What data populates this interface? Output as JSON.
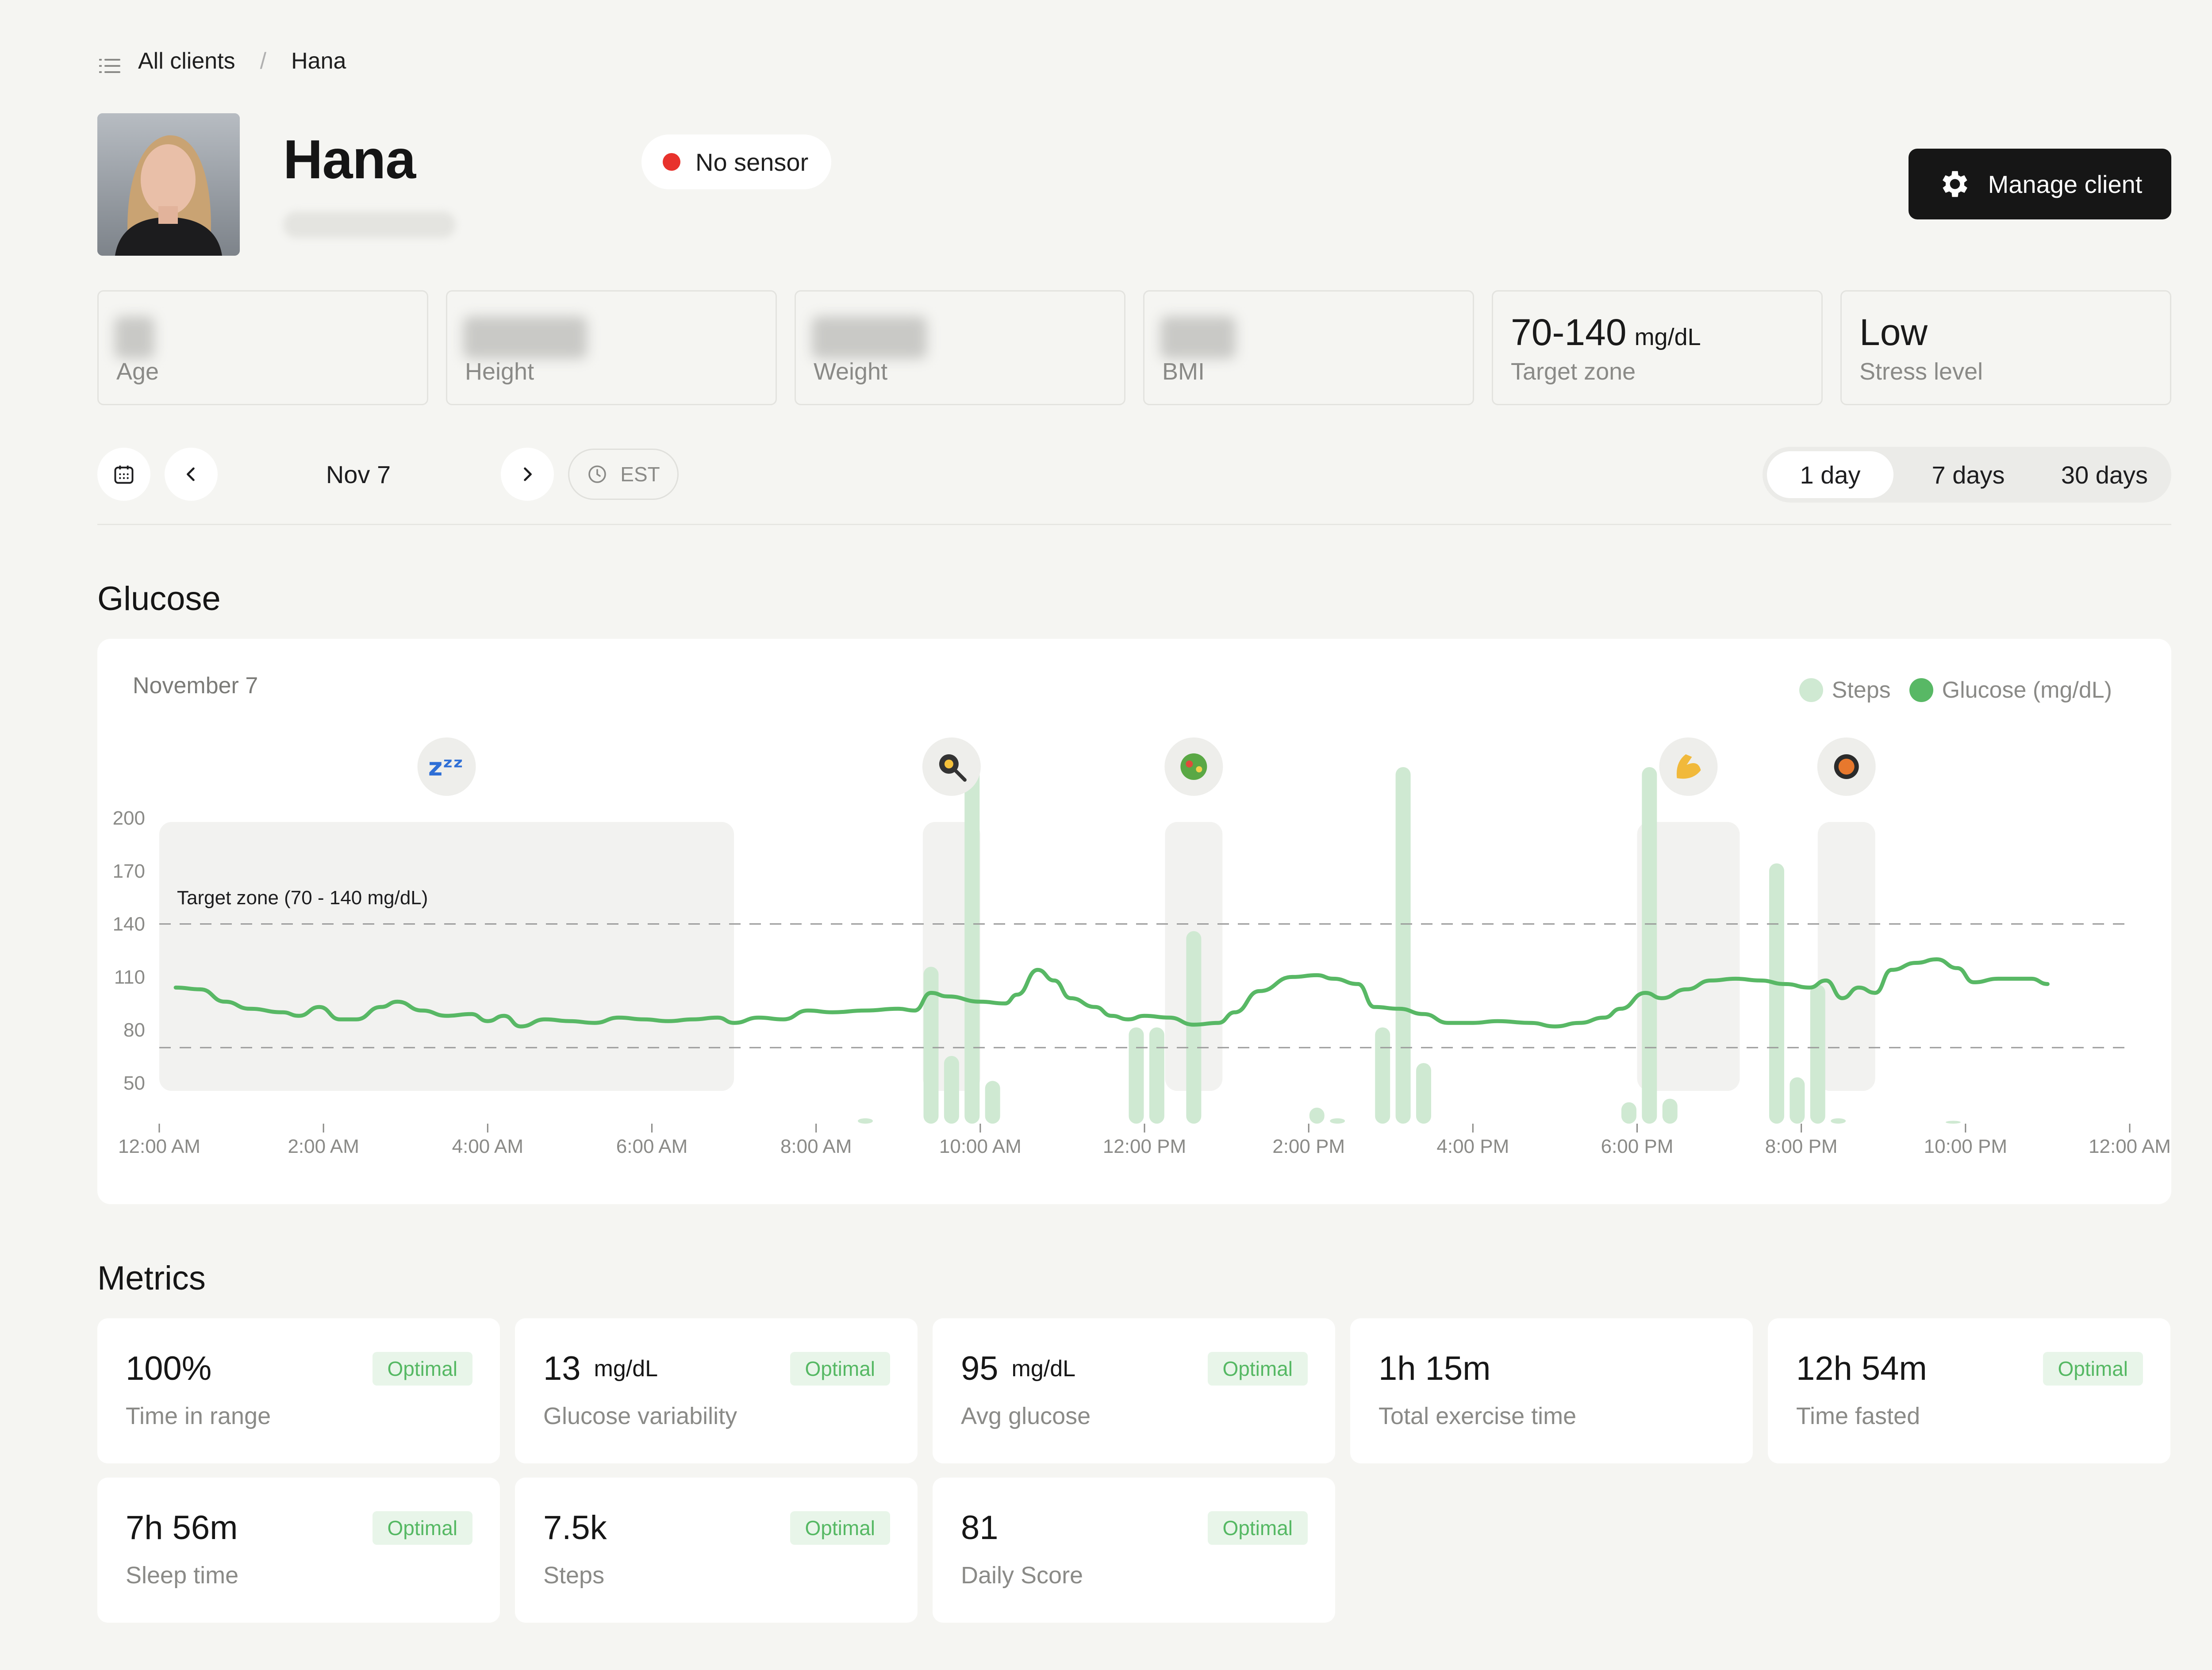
{
  "breadcrumb": {
    "root": "All clients",
    "separator": "/",
    "current": "Hana"
  },
  "client": {
    "name": "Hana"
  },
  "sensor": {
    "status": "No sensor"
  },
  "actions": {
    "manage_label": "Manage client"
  },
  "stats": [
    {
      "value": "",
      "unit": "",
      "label": "Age"
    },
    {
      "value": "",
      "unit": "",
      "label": "Height"
    },
    {
      "value": "",
      "unit": "",
      "label": "Weight"
    },
    {
      "value": "",
      "unit": "",
      "label": "BMI"
    },
    {
      "value": "70-140",
      "unit": "mg/dL",
      "label": "Target zone"
    },
    {
      "value": "Low",
      "unit": "",
      "label": "Stress level"
    }
  ],
  "date_nav": {
    "date": "Nov 7",
    "timezone": "EST"
  },
  "range": {
    "options": [
      "1 day",
      "7 days",
      "30 days"
    ],
    "selected": "1 day"
  },
  "glucose_section": {
    "title": "Glucose"
  },
  "metrics_section": {
    "title": "Metrics"
  },
  "chart_data": {
    "type": "line",
    "title": "",
    "date_label": "November 7",
    "xlabel": "",
    "ylabel": "",
    "x_ticks": [
      "12:00 AM",
      "2:00 AM",
      "4:00 AM",
      "6:00 AM",
      "8:00 AM",
      "10:00 AM",
      "12:00 PM",
      "2:00 PM",
      "4:00 PM",
      "6:00 PM",
      "8:00 PM",
      "10:00 PM",
      "12:00 AM"
    ],
    "y_ticks": [
      50,
      80,
      110,
      140,
      170,
      200
    ],
    "ylim": [
      50,
      200
    ],
    "xlim_hours": [
      0,
      24
    ],
    "target_zone": {
      "low": 70,
      "high": 140,
      "label": "Target zone (70 - 140 mg/dL)"
    },
    "legend": {
      "placement": "top-right",
      "items": [
        {
          "name": "Steps",
          "color": "#cfe9d2"
        },
        {
          "name": "Glucose (mg/dL)",
          "color": "#58b865"
        }
      ]
    },
    "colors": {
      "glucose": "#58b865",
      "steps": "#cfe9d2",
      "event_shade": "#f2f2f0",
      "zone_line": "#9a9a9a"
    },
    "series": [
      {
        "name": "Glucose (mg/dL)",
        "points": [
          [
            0.2,
            104
          ],
          [
            0.5,
            103
          ],
          [
            0.8,
            96
          ],
          [
            1.1,
            92
          ],
          [
            1.5,
            90
          ],
          [
            1.7,
            88
          ],
          [
            1.95,
            93
          ],
          [
            2.2,
            86
          ],
          [
            2.4,
            86
          ],
          [
            2.7,
            93
          ],
          [
            2.9,
            96
          ],
          [
            3.2,
            91
          ],
          [
            3.5,
            88
          ],
          [
            3.8,
            89
          ],
          [
            4.0,
            85
          ],
          [
            4.2,
            88
          ],
          [
            4.4,
            82
          ],
          [
            4.7,
            86
          ],
          [
            5.0,
            85
          ],
          [
            5.3,
            84
          ],
          [
            5.6,
            87
          ],
          [
            5.9,
            86
          ],
          [
            6.2,
            85
          ],
          [
            6.5,
            86
          ],
          [
            6.8,
            87
          ],
          [
            7.0,
            84
          ],
          [
            7.3,
            87
          ],
          [
            7.6,
            86
          ],
          [
            7.9,
            91
          ],
          [
            8.2,
            90
          ],
          [
            8.6,
            91
          ],
          [
            9.0,
            92
          ],
          [
            9.2,
            91
          ],
          [
            9.4,
            101
          ],
          [
            9.6,
            99
          ],
          [
            10.0,
            96
          ],
          [
            10.3,
            95
          ],
          [
            10.45,
            100
          ],
          [
            10.7,
            114
          ],
          [
            10.9,
            108
          ],
          [
            11.1,
            98
          ],
          [
            11.4,
            93
          ],
          [
            11.6,
            88
          ],
          [
            11.8,
            86
          ],
          [
            12.0,
            88
          ],
          [
            12.3,
            87
          ],
          [
            12.6,
            83
          ],
          [
            12.9,
            84
          ],
          [
            13.1,
            90
          ],
          [
            13.4,
            102
          ],
          [
            13.8,
            110
          ],
          [
            14.1,
            111
          ],
          [
            14.3,
            109
          ],
          [
            14.6,
            106
          ],
          [
            14.8,
            93
          ],
          [
            15.1,
            92
          ],
          [
            15.4,
            89
          ],
          [
            15.7,
            84
          ],
          [
            16.0,
            84
          ],
          [
            16.3,
            85
          ],
          [
            16.7,
            84
          ],
          [
            17.0,
            82
          ],
          [
            17.3,
            84
          ],
          [
            17.6,
            87
          ],
          [
            17.8,
            92
          ],
          [
            18.1,
            101
          ],
          [
            18.3,
            98
          ],
          [
            18.6,
            103
          ],
          [
            18.9,
            108
          ],
          [
            19.2,
            109
          ],
          [
            19.5,
            108
          ],
          [
            19.8,
            106
          ],
          [
            20.1,
            104
          ],
          [
            20.3,
            108
          ],
          [
            20.5,
            98
          ],
          [
            20.7,
            104
          ],
          [
            20.9,
            101
          ],
          [
            21.1,
            114
          ],
          [
            21.4,
            118
          ],
          [
            21.65,
            120
          ],
          [
            21.9,
            115
          ],
          [
            22.1,
            107
          ],
          [
            22.4,
            109
          ],
          [
            22.8,
            109
          ],
          [
            23.0,
            106
          ]
        ]
      },
      {
        "name": "Steps",
        "bars": [
          [
            8.6,
            0.015
          ],
          [
            9.4,
            0.44
          ],
          [
            9.65,
            0.19
          ],
          [
            9.9,
            1.0
          ],
          [
            10.15,
            0.12
          ],
          [
            11.9,
            0.27
          ],
          [
            12.15,
            0.27
          ],
          [
            12.6,
            0.54
          ],
          [
            14.1,
            0.045
          ],
          [
            14.35,
            0.015
          ],
          [
            14.9,
            0.27
          ],
          [
            15.15,
            1.0
          ],
          [
            15.4,
            0.17
          ],
          [
            17.9,
            0.06
          ],
          [
            18.15,
            1.0
          ],
          [
            18.4,
            0.07
          ],
          [
            19.7,
            0.73
          ],
          [
            19.95,
            0.13
          ],
          [
            20.2,
            0.39
          ],
          [
            20.45,
            0.015
          ],
          [
            21.85,
            0.008
          ]
        ]
      }
    ],
    "events": [
      {
        "icon": "sleep-icon",
        "start": 0.0,
        "end": 7.0
      },
      {
        "icon": "breakfast-icon",
        "start": 9.3,
        "end": 10.0
      },
      {
        "icon": "salad-icon",
        "start": 12.25,
        "end": 12.95
      },
      {
        "icon": "exercise-icon",
        "start": 18.0,
        "end": 19.25
      },
      {
        "icon": "dinner-icon",
        "start": 20.2,
        "end": 20.9
      }
    ]
  },
  "metrics": [
    {
      "value": "100%",
      "unit": "",
      "label": "Time in range",
      "badge": "Optimal"
    },
    {
      "value": "13",
      "unit": "mg/dL",
      "label": "Glucose variability",
      "badge": "Optimal"
    },
    {
      "value": "95",
      "unit": "mg/dL",
      "label": "Avg glucose",
      "badge": "Optimal"
    },
    {
      "value": "1h 15m",
      "unit": "",
      "label": "Total exercise time",
      "badge": ""
    },
    {
      "value": "12h 54m",
      "unit": "",
      "label": "Time fasted",
      "badge": "Optimal"
    },
    {
      "value": "7h 56m",
      "unit": "",
      "label": "Sleep time",
      "badge": "Optimal"
    },
    {
      "value": "7.5k",
      "unit": "",
      "label": "Steps",
      "badge": "Optimal"
    },
    {
      "value": "81",
      "unit": "",
      "label": "Daily Score",
      "badge": "Optimal"
    }
  ]
}
